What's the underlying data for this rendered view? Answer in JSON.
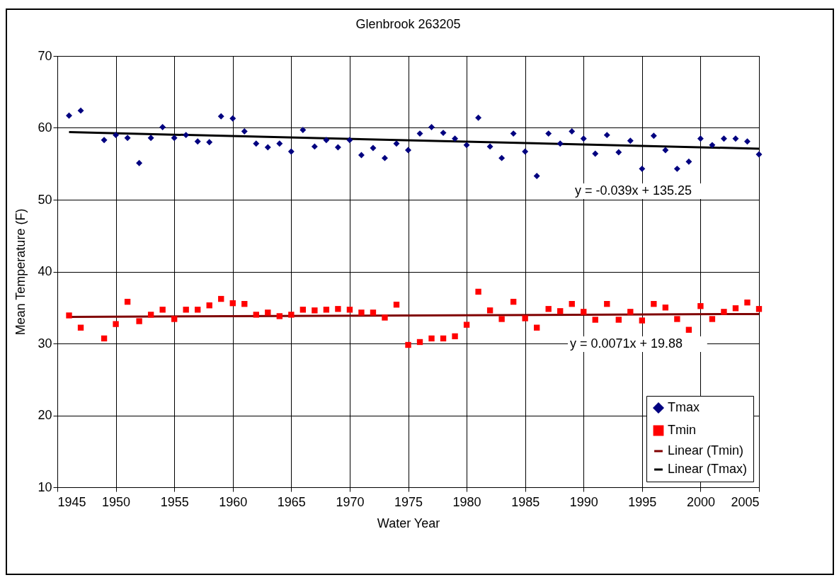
{
  "chart_data": {
    "type": "scatter",
    "title": "Glenbrook 263205",
    "xlabel": "Water Year",
    "ylabel": "Mean Temperature (F)",
    "xlim": [
      1945,
      2005
    ],
    "xticks": [
      1945,
      1950,
      1955,
      1960,
      1965,
      1970,
      1975,
      1980,
      1985,
      1990,
      1995,
      2000,
      2005
    ],
    "ylim": [
      10,
      70
    ],
    "yticks": [
      10,
      20,
      30,
      40,
      50,
      60,
      70
    ],
    "grid": true,
    "legend": "bottom right",
    "annotations": [
      "y = -0.039x + 135.25",
      "y = 0.0071x + 19.88"
    ],
    "series": [
      {
        "name": "Tmax",
        "color": "#000080",
        "marker": "diamond",
        "x": [
          1946,
          1947,
          1949,
          1950,
          1951,
          1952,
          1953,
          1954,
          1955,
          1956,
          1957,
          1958,
          1959,
          1960,
          1961,
          1962,
          1963,
          1964,
          1965,
          1966,
          1967,
          1968,
          1969,
          1970,
          1971,
          1972,
          1973,
          1974,
          1975,
          1976,
          1977,
          1978,
          1979,
          1980,
          1981,
          1982,
          1983,
          1984,
          1985,
          1986,
          1987,
          1988,
          1989,
          1990,
          1991,
          1992,
          1993,
          1994,
          1995,
          1996,
          1997,
          1998,
          1999,
          2000,
          2001,
          2002,
          2003,
          2004,
          2005
        ],
        "values": [
          61.7,
          62.4,
          58.3,
          59.0,
          58.6,
          55.1,
          58.6,
          60.1,
          58.6,
          59.0,
          58.1,
          58.0,
          61.6,
          61.3,
          59.5,
          57.8,
          57.3,
          57.8,
          56.7,
          59.7,
          57.4,
          58.3,
          57.3,
          58.3,
          56.2,
          57.2,
          55.8,
          57.8,
          56.9,
          59.2,
          60.1,
          59.3,
          58.5,
          57.6,
          61.4,
          57.4,
          55.8,
          59.2,
          56.7,
          53.3,
          59.2,
          57.8,
          59.5,
          58.5,
          56.4,
          59.0,
          56.6,
          58.2,
          54.3,
          58.9,
          56.9,
          54.3,
          55.3,
          58.5,
          57.6,
          58.5,
          58.5,
          58.1,
          56.3
        ]
      },
      {
        "name": "Tmin",
        "color": "#ff0000",
        "marker": "square",
        "x": [
          1946,
          1947,
          1949,
          1950,
          1951,
          1952,
          1953,
          1954,
          1955,
          1956,
          1957,
          1958,
          1959,
          1960,
          1961,
          1962,
          1963,
          1964,
          1965,
          1966,
          1967,
          1968,
          1969,
          1970,
          1971,
          1972,
          1973,
          1974,
          1975,
          1976,
          1977,
          1978,
          1979,
          1980,
          1981,
          1982,
          1983,
          1984,
          1985,
          1986,
          1987,
          1988,
          1989,
          1990,
          1991,
          1992,
          1993,
          1994,
          1995,
          1996,
          1997,
          1998,
          1999,
          2000,
          2001,
          2002,
          2003,
          2004,
          2005
        ],
        "values": [
          33.9,
          32.2,
          30.7,
          32.7,
          35.8,
          33.1,
          34.0,
          34.7,
          33.4,
          34.7,
          34.7,
          35.3,
          36.2,
          35.6,
          35.5,
          34.0,
          34.3,
          33.8,
          34.0,
          34.7,
          34.6,
          34.7,
          34.8,
          34.7,
          34.3,
          34.3,
          33.6,
          35.4,
          29.8,
          30.2,
          30.7,
          30.7,
          31.0,
          32.6,
          37.2,
          34.6,
          33.4,
          35.8,
          33.5,
          32.2,
          34.8,
          34.5,
          35.5,
          34.4,
          33.3,
          35.5,
          33.3,
          34.4,
          33.2,
          35.5,
          35.0,
          33.4,
          31.9,
          35.2,
          33.4,
          34.4,
          34.9,
          35.7,
          34.8
        ]
      },
      {
        "name": "Linear (Tmin)",
        "type": "line",
        "color": "#800000",
        "marker": "none",
        "line_style": "solid",
        "x": [
          1946,
          2005
        ],
        "values": [
          33.7,
          34.1
        ]
      },
      {
        "name": "Linear (Tmax)",
        "type": "line",
        "color": "#000000",
        "marker": "none",
        "line_style": "solid",
        "x": [
          1946,
          2005
        ],
        "values": [
          59.4,
          57.1
        ]
      }
    ]
  }
}
